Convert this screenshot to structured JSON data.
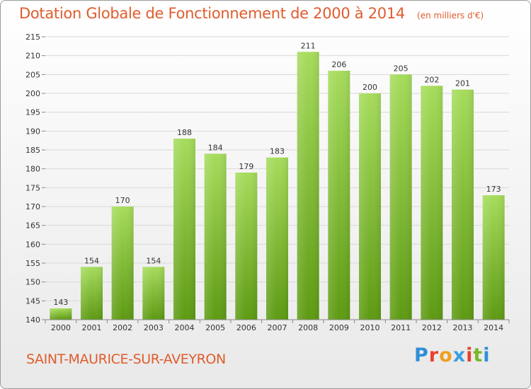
{
  "title": "Dotation Globale de Fonctionnement de 2000 à 2014",
  "unit_note": "(en milliers d'€)",
  "commune": "SAINT-MAURICE-SUR-AVEYRON",
  "logo": {
    "text": "Proxiti",
    "letter_colors": [
      "#2f8fd8",
      "#e8402f",
      "#f0a020",
      "#3aa0e0",
      "#e8402f",
      "#79b82a",
      "#2f8fd8"
    ]
  },
  "colors": {
    "bar_light": "#a6dc5c",
    "bar_dark": "#5d9a12",
    "grid": "#d8d8d8",
    "accent": "#e05c2d"
  },
  "chart_data": {
    "type": "bar",
    "categories": [
      "2000",
      "2001",
      "2002",
      "2003",
      "2004",
      "2005",
      "2006",
      "2007",
      "2008",
      "2009",
      "2010",
      "2011",
      "2012",
      "2013",
      "2014"
    ],
    "values": [
      143,
      154,
      170,
      154,
      188,
      184,
      179,
      183,
      211,
      206,
      200,
      205,
      202,
      201,
      173
    ],
    "title": "Dotation Globale de Fonctionnement de 2000 à 2014",
    "xlabel": "",
    "ylabel": "",
    "ylim": [
      140,
      215
    ],
    "yticks": [
      140,
      145,
      150,
      155,
      160,
      165,
      170,
      175,
      180,
      185,
      190,
      195,
      200,
      205,
      210,
      215
    ],
    "grid": true
  }
}
